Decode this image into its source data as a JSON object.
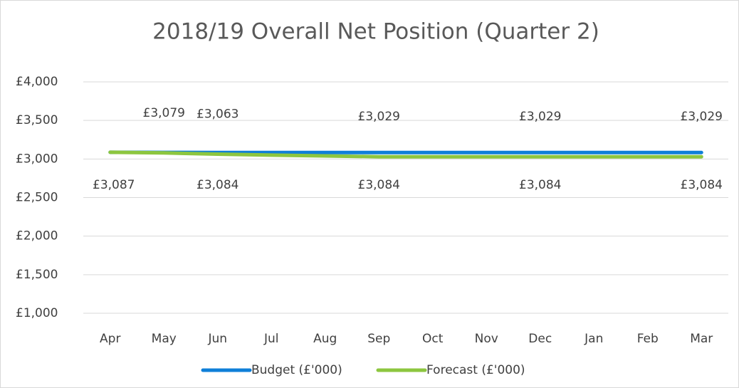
{
  "chart_data": {
    "type": "line",
    "title": "2018/19 Overall Net Position (Quarter 2)",
    "categories": [
      "Apr",
      "May",
      "Jun",
      "Jul",
      "Aug",
      "Sep",
      "Oct",
      "Nov",
      "Dec",
      "Jan",
      "Feb",
      "Mar"
    ],
    "series": [
      {
        "name": "Budget (£'000)",
        "color": "#0f7fd8",
        "values": [
          3087,
          3085,
          3084,
          3084,
          3084,
          3084,
          3084,
          3084,
          3084,
          3084,
          3084,
          3084
        ],
        "value_labels": [
          "£3,087",
          null,
          "£3,084",
          null,
          null,
          "£3,084",
          null,
          null,
          "£3,084",
          null,
          null,
          "£3,084"
        ]
      },
      {
        "name": "Forecast (£'000)",
        "color": "#8dc63f",
        "values": [
          3087,
          3079,
          3063,
          3050,
          3040,
          3029,
          3029,
          3029,
          3029,
          3029,
          3029,
          3029
        ],
        "value_labels": [
          null,
          "£3,079",
          "£3,063",
          null,
          null,
          "£3,029",
          null,
          null,
          "£3,029",
          null,
          null,
          "£3,029"
        ]
      }
    ],
    "ylim": [
      1000,
      4000
    ],
    "yticks": [
      {
        "value": 1000,
        "label": "£1,000"
      },
      {
        "value": 1500,
        "label": "£1,500"
      },
      {
        "value": 2000,
        "label": "£2,000"
      },
      {
        "value": 2500,
        "label": "£2,500"
      },
      {
        "value": 3000,
        "label": "£3,000"
      },
      {
        "value": 3500,
        "label": "£3,500"
      },
      {
        "value": 4000,
        "label": "£4,000"
      }
    ],
    "grid": true,
    "legend": "bottom"
  }
}
